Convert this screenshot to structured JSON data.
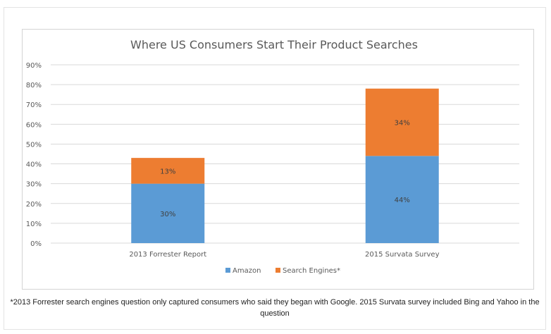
{
  "chart_data": {
    "type": "bar",
    "stacked": true,
    "title": "Where US Consumers Start Their Product Searches",
    "categories": [
      "2013 Forrester Report",
      "2015 Survata Survey"
    ],
    "series": [
      {
        "name": "Amazon",
        "values": [
          30,
          44
        ],
        "labels": [
          "30%",
          "44%"
        ],
        "color": "#5b9bd5"
      },
      {
        "name": "Search Engines*",
        "values": [
          13,
          34
        ],
        "labels": [
          "13%",
          "34%"
        ],
        "color": "#ed7d31"
      }
    ],
    "ylim": [
      0,
      90
    ],
    "yticks": [
      "0%",
      "10%",
      "20%",
      "30%",
      "40%",
      "50%",
      "60%",
      "70%",
      "80%",
      "90%"
    ],
    "grid": true,
    "legend_position": "bottom",
    "gridline_color": "#d9d9d9",
    "text_color": "#595959"
  },
  "footnote": "*2013 Forrester search engines question only captured consumers who said they began with Google. 2015 Survata survey included Bing and Yahoo in the question"
}
